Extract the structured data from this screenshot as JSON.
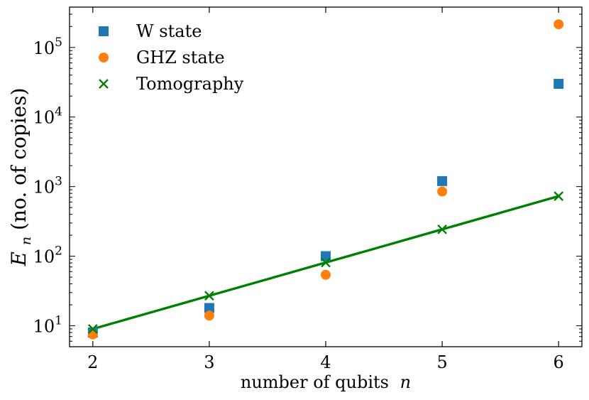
{
  "chart_data": {
    "type": "scatter",
    "xlabel": "number of qubits",
    "xlabel_var": "n",
    "ylabel_var": "E",
    "ylabel_sub": "n",
    "ylabel_rest": "(no. of copies)",
    "x_ticks": [
      2,
      3,
      4,
      5,
      6
    ],
    "x_tick_labels": [
      "2",
      "3",
      "4",
      "5",
      "6"
    ],
    "xlim": [
      1.8,
      6.2
    ],
    "y_scale": "log",
    "ylim": [
      5,
      380000
    ],
    "y_ticks": [
      10,
      100,
      1000,
      10000,
      100000
    ],
    "y_tick_labels": [
      {
        "base": "10",
        "exp": "1"
      },
      {
        "base": "10",
        "exp": "2"
      },
      {
        "base": "10",
        "exp": "3"
      },
      {
        "base": "10",
        "exp": "4"
      },
      {
        "base": "10",
        "exp": "5"
      }
    ],
    "legend_position": "top-left",
    "series": [
      {
        "name": "W state",
        "marker": "square",
        "color": "#1f77b4",
        "x": [
          2,
          3,
          4,
          5,
          6
        ],
        "y": [
          8,
          18,
          100,
          1200,
          30000
        ]
      },
      {
        "name": "GHZ state",
        "marker": "circle",
        "color": "#ff7f0e",
        "x": [
          2,
          3,
          4,
          5,
          6
        ],
        "y": [
          7.5,
          14,
          54,
          850,
          215000
        ]
      },
      {
        "name": "Tomography",
        "marker": "x",
        "color": "#008000",
        "line": true,
        "x": [
          2,
          3,
          4,
          5,
          6
        ],
        "y": [
          9,
          27,
          81,
          243,
          729
        ]
      }
    ]
  }
}
